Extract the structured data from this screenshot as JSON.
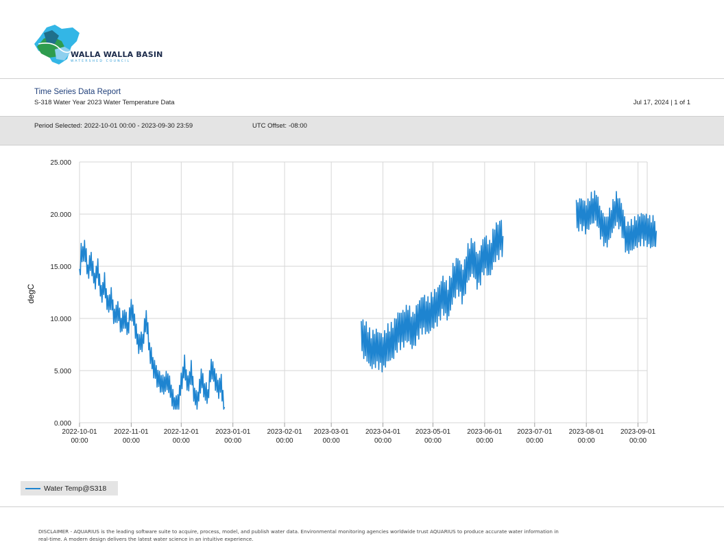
{
  "header": {
    "logo": {
      "name": "WALLA WALLA BASIN",
      "subname": "WATERSHED COUNCIL",
      "colors": [
        "#33b6e6",
        "#2e9c4e",
        "#1f6f8b",
        "#8ed0ef"
      ]
    }
  },
  "report": {
    "title": "Time Series Data Report",
    "subtitle": "S-318 Water Year 2023 Water Temperature Data",
    "date_page": "Jul 17, 2024 | 1 of 1"
  },
  "period": {
    "label": "Period Selected:",
    "value": "2022-10-01 00:00 - 2023-09-30 23:59",
    "utc_label": "UTC Offset:",
    "utc_value": "-08:00"
  },
  "chart_data": {
    "type": "line",
    "ylabel": "degC",
    "xlabel": "",
    "ylim": [
      0,
      25
    ],
    "yticks": [
      "0.000",
      "5.000",
      "10.000",
      "15.000",
      "20.000",
      "25.000"
    ],
    "xlim": [
      "2022-10-01",
      "2023-09-02"
    ],
    "xticks": [
      {
        "date": "2022-10-01",
        "label1": "2022-10-01",
        "label2": "00:00"
      },
      {
        "date": "2022-11-01",
        "label1": "2022-11-01",
        "label2": "00:00"
      },
      {
        "date": "2022-12-01",
        "label1": "2022-12-01",
        "label2": "00:00"
      },
      {
        "date": "2023-01-01",
        "label1": "2023-01-01",
        "label2": "00:00"
      },
      {
        "date": "2023-02-01",
        "label1": "2023-02-01",
        "label2": "00:00"
      },
      {
        "date": "2023-03-01",
        "label1": "2023-03-01",
        "label2": "00:00"
      },
      {
        "date": "2023-04-01",
        "label1": "2023-04-01",
        "label2": "00:00"
      },
      {
        "date": "2023-05-01",
        "label1": "2023-05-01",
        "label2": "00:00"
      },
      {
        "date": "2023-06-01",
        "label1": "2023-06-01",
        "label2": "00:00"
      },
      {
        "date": "2023-07-01",
        "label1": "2023-07-01",
        "label2": "00:00"
      },
      {
        "date": "2023-08-01",
        "label1": "2023-08-01",
        "label2": "00:00"
      },
      {
        "date": "2023-09-01",
        "label1": "2023-09-01",
        "label2": "00:00"
      }
    ],
    "grid": true,
    "legend_position": "bottom-left",
    "series": [
      {
        "name": "Water Temp@S318",
        "color": "#1e84d0",
        "segments": [
          [
            [
              "2022-10-01",
              13.8
            ],
            [
              "2022-10-02",
              16.5
            ],
            [
              "2022-10-03",
              15.9
            ],
            [
              "2022-10-04",
              16.9
            ],
            [
              "2022-10-06",
              14.5
            ],
            [
              "2022-10-08",
              15.6
            ],
            [
              "2022-10-10",
              13.5
            ],
            [
              "2022-10-12",
              14.8
            ],
            [
              "2022-10-14",
              12.2
            ],
            [
              "2022-10-16",
              13.4
            ],
            [
              "2022-10-18",
              11.2
            ],
            [
              "2022-10-20",
              12.0
            ],
            [
              "2022-10-22",
              10.0
            ],
            [
              "2022-10-24",
              10.8
            ],
            [
              "2022-10-26",
              9.3
            ],
            [
              "2022-10-28",
              10.2
            ],
            [
              "2022-10-30",
              9.0
            ],
            [
              "2022-11-01",
              11.1
            ],
            [
              "2022-11-03",
              9.6
            ],
            [
              "2022-11-05",
              7.6
            ],
            [
              "2022-11-08",
              7.8
            ],
            [
              "2022-11-10",
              10.2
            ],
            [
              "2022-11-12",
              7.0
            ],
            [
              "2022-11-14",
              5.5
            ],
            [
              "2022-11-17",
              4.2
            ],
            [
              "2022-11-20",
              3.6
            ],
            [
              "2022-11-23",
              4.1
            ],
            [
              "2022-11-25",
              2.9
            ],
            [
              "2022-11-27",
              1.6
            ],
            [
              "2022-11-29",
              1.8
            ],
            [
              "2022-12-01",
              3.8
            ],
            [
              "2022-12-03",
              5.5
            ],
            [
              "2022-12-05",
              3.5
            ],
            [
              "2022-12-07",
              5.0
            ],
            [
              "2022-12-09",
              2.4
            ],
            [
              "2022-12-11",
              2.1
            ],
            [
              "2022-12-13",
              4.4
            ],
            [
              "2022-12-15",
              3.1
            ],
            [
              "2022-12-17",
              2.6
            ],
            [
              "2022-12-19",
              5.4
            ],
            [
              "2022-12-21",
              4.4
            ],
            [
              "2022-12-23",
              3.2
            ],
            [
              "2022-12-25",
              3.7
            ],
            [
              "2022-12-26",
              2.4
            ],
            [
              "2022-12-27",
              1.5
            ]
          ],
          [
            [
              "2023-03-19",
              8.2
            ],
            [
              "2023-03-22",
              7.8
            ],
            [
              "2023-03-25",
              6.9
            ],
            [
              "2023-03-28",
              7.2
            ],
            [
              "2023-04-01",
              6.7
            ],
            [
              "2023-04-04",
              7.6
            ],
            [
              "2023-04-07",
              7.8
            ],
            [
              "2023-04-10",
              8.8
            ],
            [
              "2023-04-13",
              9.0
            ],
            [
              "2023-04-16",
              9.6
            ],
            [
              "2023-04-19",
              8.7
            ],
            [
              "2023-04-22",
              9.8
            ],
            [
              "2023-04-25",
              10.5
            ],
            [
              "2023-04-28",
              10.2
            ],
            [
              "2023-05-01",
              10.8
            ],
            [
              "2023-05-04",
              11.2
            ],
            [
              "2023-05-07",
              12.3
            ],
            [
              "2023-05-10",
              11.5
            ],
            [
              "2023-05-13",
              13.4
            ],
            [
              "2023-05-16",
              14.2
            ],
            [
              "2023-05-19",
              13.1
            ],
            [
              "2023-05-22",
              15.3
            ],
            [
              "2023-05-25",
              16.0
            ],
            [
              "2023-05-28",
              14.4
            ],
            [
              "2023-06-01",
              16.3
            ],
            [
              "2023-06-04",
              15.6
            ],
            [
              "2023-06-07",
              17.2
            ],
            [
              "2023-06-10",
              17.6
            ],
            [
              "2023-06-12",
              17.9
            ]
          ],
          [
            [
              "2023-07-26",
              19.8
            ],
            [
              "2023-07-29",
              20.1
            ],
            [
              "2023-08-01",
              19.6
            ],
            [
              "2023-08-04",
              20.5
            ],
            [
              "2023-08-07",
              20.7
            ],
            [
              "2023-08-10",
              18.9
            ],
            [
              "2023-08-13",
              18.2
            ],
            [
              "2023-08-16",
              19.4
            ],
            [
              "2023-08-19",
              20.6
            ],
            [
              "2023-08-22",
              19.7
            ],
            [
              "2023-08-25",
              17.6
            ],
            [
              "2023-08-28",
              17.9
            ],
            [
              "2023-08-31",
              18.3
            ],
            [
              "2023-09-03",
              18.6
            ],
            [
              "2023-09-06",
              18.5
            ],
            [
              "2023-09-09",
              18.2
            ],
            [
              "2023-09-12",
              18.4
            ]
          ]
        ]
      }
    ]
  },
  "legend": {
    "label": "Water Temp@S318",
    "color": "#1e84d0"
  },
  "disclaimer": "DISCLAIMER - AQUARIUS is the leading software suite to acquire, process, model, and publish water data. Environmental monitoring agencies worldwide trust AQUARIUS to produce accurate water information in real-time. A modern design delivers the latest water science in an intuitive experience."
}
